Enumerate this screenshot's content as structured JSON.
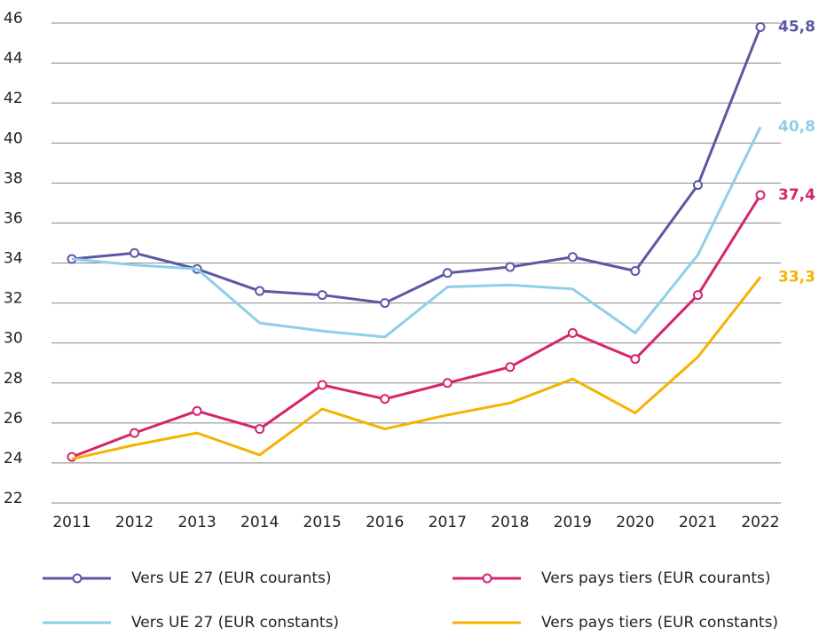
{
  "chart_data": {
    "type": "line",
    "categories": [
      "2011",
      "2012",
      "2013",
      "2014",
      "2015",
      "2016",
      "2017",
      "2018",
      "2019",
      "2020",
      "2021",
      "2022"
    ],
    "ylim": [
      22,
      46
    ],
    "yticks": [
      22,
      24,
      26,
      28,
      30,
      32,
      34,
      36,
      38,
      40,
      42,
      44,
      46
    ],
    "grid": true,
    "series": [
      {
        "name": "Vers UE 27 (EUR courants)",
        "color": "#5b58a3",
        "markers": true,
        "end_label": "45,8",
        "values": [
          34.2,
          34.5,
          33.7,
          32.6,
          32.4,
          32.0,
          33.5,
          33.8,
          34.3,
          33.6,
          37.9,
          45.8
        ]
      },
      {
        "name": "Vers pays tiers (EUR courants)",
        "color": "#d6246e",
        "markers": true,
        "end_label": "37,4",
        "values": [
          24.3,
          25.5,
          26.6,
          25.7,
          27.9,
          27.2,
          28.0,
          28.8,
          30.5,
          29.2,
          32.4,
          37.4
        ]
      },
      {
        "name": "Vers UE 27 (EUR constants)",
        "color": "#8ecfe8",
        "markers": false,
        "end_label": "40,8",
        "values": [
          34.2,
          33.9,
          33.7,
          31.0,
          30.6,
          30.3,
          32.8,
          32.9,
          32.7,
          30.5,
          34.4,
          40.8
        ]
      },
      {
        "name": "Vers pays tiers (EUR constants)",
        "color": "#f5b200",
        "markers": false,
        "end_label": "33,3",
        "values": [
          24.2,
          24.9,
          25.5,
          24.4,
          26.7,
          25.7,
          26.4,
          27.0,
          28.2,
          26.5,
          29.3,
          33.3
        ]
      }
    ]
  }
}
